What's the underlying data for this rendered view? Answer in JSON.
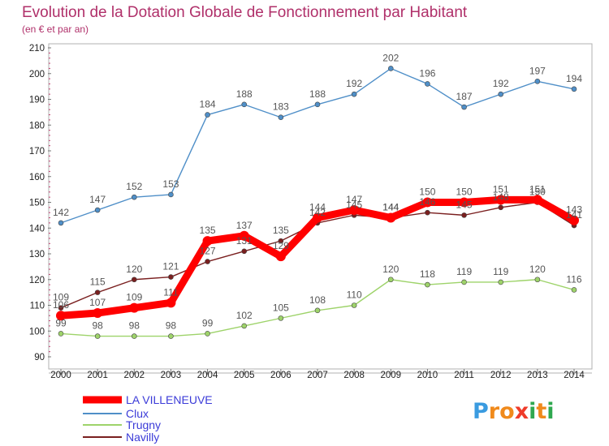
{
  "chart_data": {
    "type": "line",
    "title": "Evolution de la Dotation Globale de Fonctionnement par Habitant",
    "subtitle": "(en € et par an)",
    "xlabel": "",
    "ylabel": "",
    "x": [
      "2000",
      "2001",
      "2002",
      "2003",
      "2004",
      "2005",
      "2006",
      "2007",
      "2008",
      "2009",
      "2010",
      "2011",
      "2012",
      "2013",
      "2014"
    ],
    "ylim": [
      90,
      210
    ],
    "yticks": [
      90,
      100,
      110,
      120,
      130,
      140,
      150,
      160,
      170,
      180,
      190,
      200,
      210
    ],
    "grid": false,
    "legend_position": "bottom-left",
    "series": [
      {
        "name": "LA VILLENEUVE",
        "color": "#ff0000",
        "values": [
          106,
          107,
          109,
          111,
          135,
          137,
          129,
          144,
          147,
          144,
          150,
          150,
          151,
          151,
          143
        ]
      },
      {
        "name": "Clux",
        "color": "#4f8fc8",
        "values": [
          142,
          147,
          152,
          153,
          184,
          188,
          183,
          188,
          192,
          202,
          196,
          187,
          192,
          197,
          194
        ]
      },
      {
        "name": "Trugny",
        "color": "#9ed36a",
        "values": [
          99,
          98,
          98,
          98,
          99,
          102,
          105,
          108,
          110,
          120,
          118,
          119,
          119,
          120,
          116
        ]
      },
      {
        "name": "Navilly",
        "color": "#7a1f1f",
        "values": [
          109,
          115,
          120,
          121,
          127,
          131,
          135,
          142,
          145,
          144,
          146,
          145,
          148,
          150,
          141
        ]
      }
    ]
  },
  "logo": {
    "text": "Proxiti"
  }
}
